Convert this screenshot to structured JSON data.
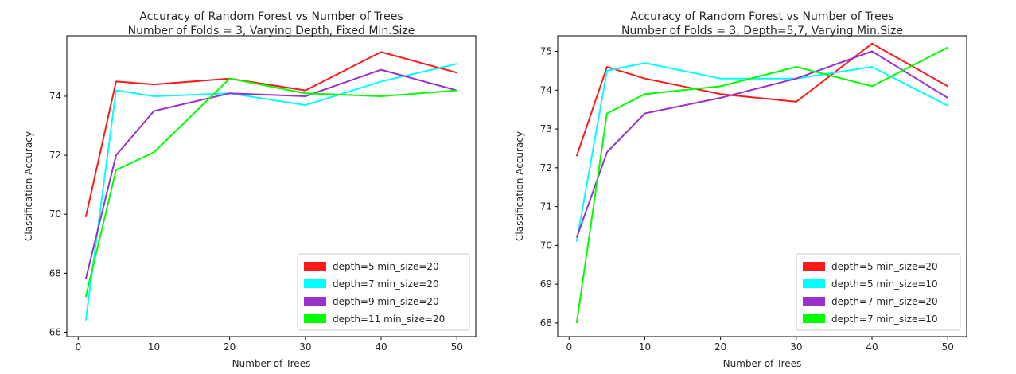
{
  "chart_data": [
    {
      "type": "line",
      "title": "Accuracy of Random Forest vs Number of Trees",
      "subtitle": "Number of Folds = 3, Varying Depth, Fixed Min.Size",
      "xlabel": "Number of Trees",
      "ylabel": "Classification Accuracy",
      "xlim": [
        -1.5,
        52.5
      ],
      "ylim": [
        65.85,
        76.05
      ],
      "xticks": [
        0,
        10,
        20,
        30,
        40,
        50
      ],
      "yticks": [
        66,
        68,
        70,
        72,
        74
      ],
      "grid": false,
      "legend": "lower-right",
      "x": [
        1,
        5,
        10,
        20,
        30,
        40,
        50
      ],
      "series": [
        {
          "name": "depth=5 min_size=20",
          "color": "#ff1a1a",
          "values": [
            69.9,
            74.5,
            74.4,
            74.6,
            74.2,
            75.5,
            74.8
          ]
        },
        {
          "name": "depth=7 min_size=20",
          "color": "#00ffff",
          "values": [
            66.4,
            74.2,
            74.0,
            74.1,
            73.7,
            74.5,
            75.1
          ]
        },
        {
          "name": "depth=9 min_size=20",
          "color": "#9932cc",
          "values": [
            67.8,
            72.0,
            73.5,
            74.1,
            74.0,
            74.9,
            74.2
          ]
        },
        {
          "name": "depth=11 min_size=20",
          "color": "#00ff00",
          "values": [
            67.2,
            71.5,
            72.1,
            74.6,
            74.1,
            74.0,
            74.2
          ]
        }
      ]
    },
    {
      "type": "line",
      "title": "Accuracy of Random Forest vs Number of Trees",
      "subtitle": "Number of Folds = 3, Depth=5,7, Varying Min.Size",
      "xlabel": "Number of Trees",
      "ylabel": "Classification Accuracy",
      "xlim": [
        -1.5,
        52.5
      ],
      "ylim": [
        67.65,
        75.4
      ],
      "xticks": [
        0,
        10,
        20,
        30,
        40,
        50
      ],
      "yticks": [
        68,
        69,
        70,
        71,
        72,
        73,
        74,
        75
      ],
      "grid": false,
      "legend": "lower-right",
      "x": [
        1,
        5,
        10,
        20,
        30,
        40,
        50
      ],
      "series": [
        {
          "name": "depth=5 min_size=20",
          "color": "#ff1a1a",
          "values": [
            72.3,
            74.6,
            74.3,
            73.9,
            73.7,
            75.2,
            74.1
          ]
        },
        {
          "name": "depth=5 min_size=10",
          "color": "#00ffff",
          "values": [
            70.1,
            74.5,
            74.7,
            74.3,
            74.3,
            74.6,
            73.6
          ]
        },
        {
          "name": "depth=7 min_size=20",
          "color": "#9932cc",
          "values": [
            70.2,
            72.4,
            73.4,
            73.8,
            74.3,
            75.0,
            73.8
          ]
        },
        {
          "name": "depth=7 min_size=10",
          "color": "#00ff00",
          "values": [
            68.0,
            73.4,
            73.9,
            74.1,
            74.6,
            74.1,
            75.1
          ]
        }
      ]
    }
  ]
}
